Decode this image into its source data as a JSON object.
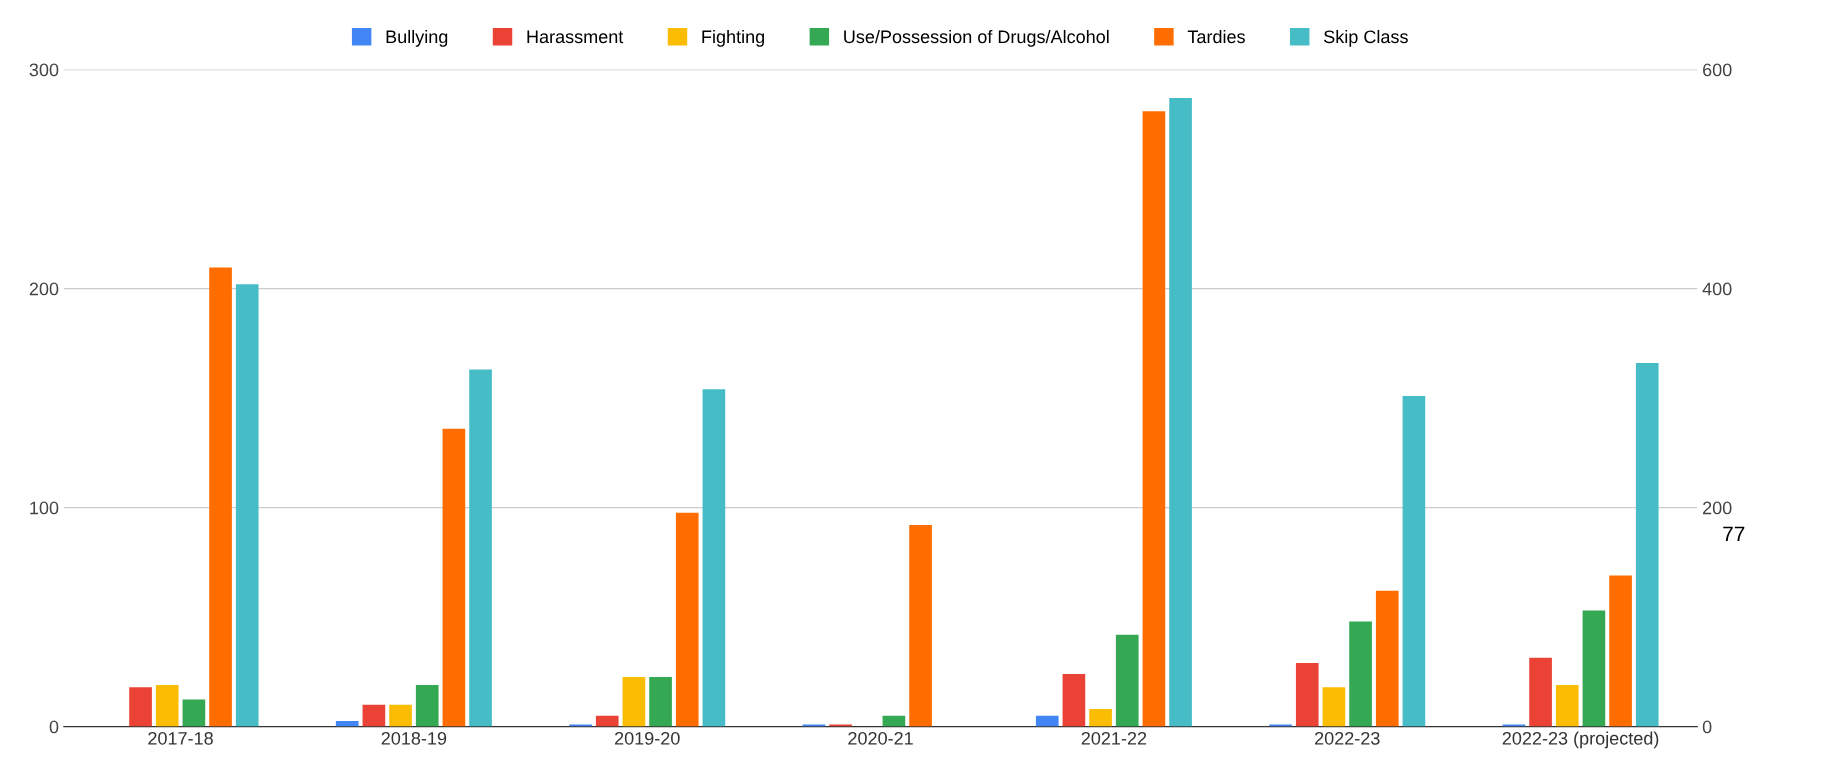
{
  "chart_data": {
    "type": "bar",
    "categories": [
      "2017-18",
      "2018-19",
      "2019-20",
      "2020-21",
      "2021-22",
      "2022-23",
      "2022-23 (projected)"
    ],
    "series": [
      {
        "name": "Bullying",
        "color": "#4285f4",
        "values": [
          0,
          2.6,
          1,
          1,
          5,
          1,
          1
        ]
      },
      {
        "name": "Harassment",
        "color": "#ea4335",
        "values": [
          18,
          10,
          5,
          1,
          24,
          29,
          31.5
        ]
      },
      {
        "name": "Fighting",
        "color": "#fbbc04",
        "values": [
          19,
          10,
          22.7,
          0,
          8,
          18,
          19
        ]
      },
      {
        "name": "Use/Possession of Drugs/Alcohol",
        "color": "#34a853",
        "values": [
          12.4,
          19,
          22.7,
          5,
          42,
          48,
          53
        ]
      },
      {
        "name": "Tardies",
        "color": "#ff6d01",
        "values": [
          209.6,
          136,
          97.6,
          92,
          281,
          62,
          69
        ]
      },
      {
        "name": "Skip Class",
        "color": "#46bdc6",
        "values": [
          202,
          163,
          154,
          0,
          287,
          151,
          166
        ]
      }
    ],
    "ylim": [
      0,
      300
    ],
    "yticks": [
      0,
      100,
      200,
      300
    ],
    "y2lim": [
      0,
      600
    ],
    "y2ticks": [
      0,
      200,
      400,
      600
    ],
    "grid": "y",
    "legend": "top",
    "annotations": [
      "77"
    ]
  }
}
